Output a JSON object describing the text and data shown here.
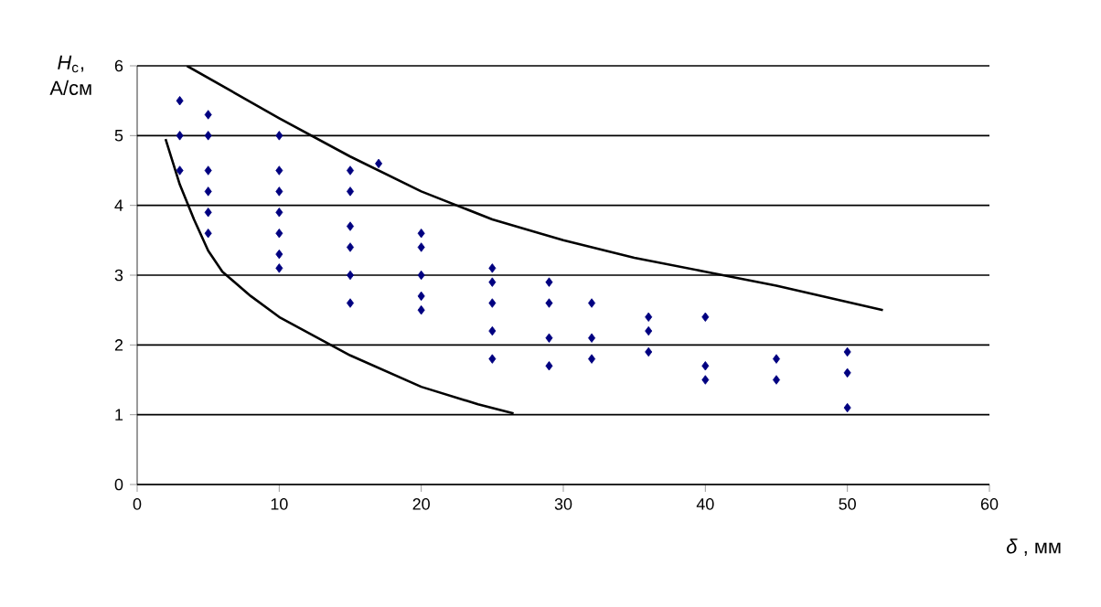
{
  "chart_data": {
    "type": "scatter",
    "xlabel": "*δ* , мм",
    "ylabel": "*H*$_{c}$, А/см",
    "xlim": [
      0,
      60
    ],
    "ylim": [
      0,
      6
    ],
    "xticks": [
      0,
      10,
      20,
      30,
      40,
      50,
      60
    ],
    "yticks": [
      0,
      1,
      2,
      3,
      4,
      5,
      6
    ],
    "grid": "y",
    "series": [
      {
        "color": "#000080",
        "marker": "diamond",
        "x": [
          3,
          3,
          3,
          5,
          5,
          5,
          5,
          5,
          5,
          10,
          10,
          10,
          10,
          10,
          10,
          10,
          15,
          15,
          15,
          15,
          15,
          15,
          17,
          20,
          20,
          20,
          20,
          20,
          25,
          25,
          25,
          25,
          25,
          29,
          29,
          29,
          29,
          32,
          32,
          32,
          36,
          36,
          36,
          40,
          40,
          40,
          45,
          45,
          50,
          50,
          50
        ],
        "values": [
          5.5,
          5.0,
          4.5,
          5.3,
          5.0,
          4.5,
          4.2,
          3.9,
          3.6,
          5.0,
          4.5,
          4.2,
          3.9,
          3.6,
          3.3,
          3.1,
          4.5,
          4.2,
          3.7,
          3.4,
          3.0,
          2.6,
          4.6,
          3.6,
          3.4,
          3.0,
          2.7,
          2.5,
          3.1,
          2.9,
          2.6,
          2.2,
          1.8,
          2.9,
          2.6,
          2.1,
          1.7,
          2.6,
          2.1,
          1.8,
          2.4,
          2.2,
          1.9,
          2.4,
          1.7,
          1.5,
          1.8,
          1.5,
          1.9,
          1.6,
          1.1
        ]
      },
      {
        "type": "line",
        "color": "#000000",
        "marker": "none",
        "x": [
          3.5,
          10,
          15,
          20,
          25,
          30,
          35,
          40,
          45,
          52.5
        ],
        "values": [
          6.0,
          5.25,
          4.7,
          4.2,
          3.8,
          3.5,
          3.25,
          3.05,
          2.85,
          2.5
        ]
      },
      {
        "type": "line",
        "color": "#000000",
        "marker": "none",
        "x": [
          2,
          3,
          4,
          5,
          6,
          8,
          10,
          15,
          20,
          24,
          26.5
        ],
        "values": [
          4.95,
          4.3,
          3.8,
          3.35,
          3.05,
          2.7,
          2.4,
          1.85,
          1.4,
          1.15,
          1.02
        ]
      }
    ]
  }
}
